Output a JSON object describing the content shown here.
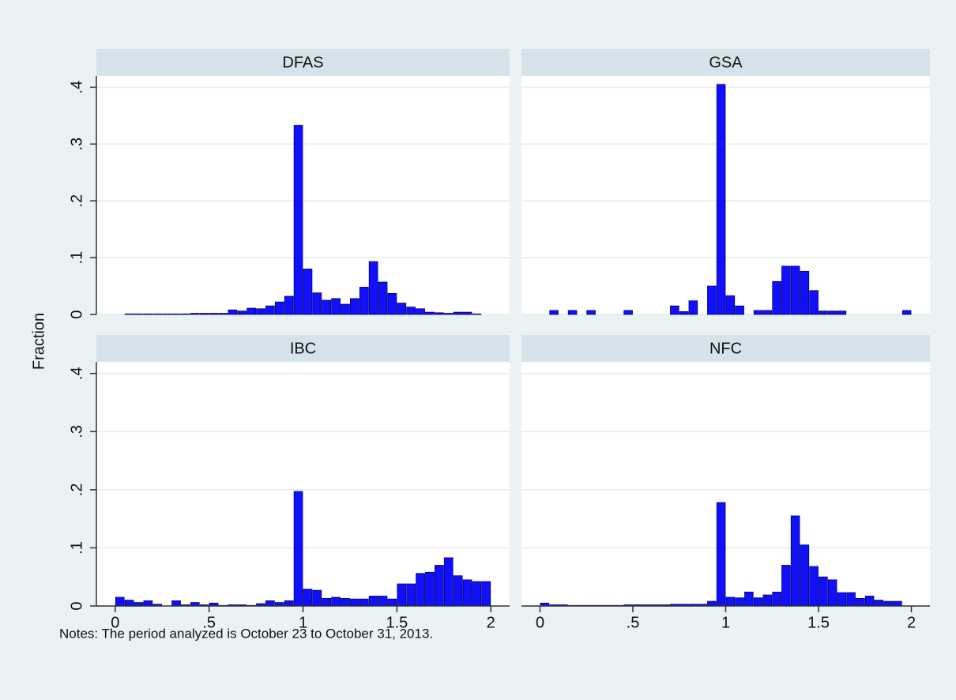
{
  "y_label": "Fraction",
  "note": "Notes: The period analyzed is October 23 to October 31, 2013.",
  "chart_data": [
    {
      "type": "histogram",
      "title": "DFAS",
      "color": "#1010ff",
      "grid": true,
      "xlim": [
        -0.1,
        2.1
      ],
      "ylim": [
        0,
        0.42
      ],
      "yticks": [
        0,
        {
          "value": 0.1,
          "label": ".1"
        },
        {
          "value": 0.2,
          "label": ".2"
        },
        {
          "value": 0.3,
          "label": ".3"
        },
        {
          "value": 0.4,
          "label": ".4"
        }
      ],
      "bins": [
        0,
        0.05,
        0.1,
        0.15,
        0.2,
        0.25,
        0.3,
        0.35,
        0.4,
        0.45,
        0.5,
        0.55,
        0.6,
        0.65,
        0.7,
        0.75,
        0.8,
        0.85,
        0.9,
        0.95,
        1,
        1.05,
        1.1,
        1.15,
        1.2,
        1.25,
        1.3,
        1.35,
        1.4,
        1.45,
        1.5,
        1.55,
        1.6,
        1.65,
        1.7,
        1.75,
        1.8,
        1.85,
        1.9,
        1.95,
        2
      ],
      "values": [
        0,
        0.001,
        0.001,
        0.001,
        0.001,
        0.001,
        0.001,
        0.001,
        0.002,
        0.002,
        0.002,
        0.002,
        0.008,
        0.006,
        0.011,
        0.01,
        0.015,
        0.022,
        0.032,
        0.333,
        0.08,
        0.038,
        0.025,
        0.028,
        0.018,
        0.028,
        0.048,
        0.093,
        0.057,
        0.037,
        0.02,
        0.013,
        0.01,
        0.004,
        0.003,
        0.002,
        0.004,
        0.004,
        0.001,
        0
      ]
    },
    {
      "type": "histogram",
      "title": "GSA",
      "color": "#1010ff",
      "grid": true,
      "xlim": [
        -0.1,
        2.1
      ],
      "ylim": [
        0,
        0.42
      ],
      "yticks": [
        0,
        {
          "value": 0.1,
          "label": ".1"
        },
        {
          "value": 0.2,
          "label": ".2"
        },
        {
          "value": 0.3,
          "label": ".3"
        },
        {
          "value": 0.4,
          "label": ".4"
        }
      ],
      "bins": [
        0,
        0.05,
        0.1,
        0.15,
        0.2,
        0.25,
        0.3,
        0.35,
        0.4,
        0.45,
        0.5,
        0.55,
        0.6,
        0.65,
        0.7,
        0.75,
        0.8,
        0.85,
        0.9,
        0.95,
        1,
        1.05,
        1.1,
        1.15,
        1.2,
        1.25,
        1.3,
        1.35,
        1.4,
        1.45,
        1.5,
        1.55,
        1.6,
        1.65,
        1.7,
        1.75,
        1.8,
        1.85,
        1.9,
        1.95,
        2
      ],
      "values": [
        0,
        0.007,
        0,
        0.007,
        0,
        0.007,
        0,
        0,
        0,
        0.007,
        0,
        0,
        0,
        0,
        0.015,
        0.005,
        0.024,
        0,
        0.05,
        0.405,
        0.033,
        0.015,
        0,
        0.007,
        0.007,
        0.058,
        0.085,
        0.085,
        0.076,
        0.042,
        0.006,
        0.006,
        0.006,
        0,
        0,
        0,
        0,
        0,
        0,
        0.007
      ]
    },
    {
      "type": "histogram",
      "title": "IBC",
      "color": "#1010ff",
      "grid": true,
      "xlim": [
        -0.1,
        2.1
      ],
      "ylim": [
        0,
        0.42
      ],
      "xticks": [
        0,
        {
          "value": 0.5,
          "label": ".5"
        },
        1,
        1.5,
        2
      ],
      "yticks": [
        0,
        {
          "value": 0.1,
          "label": ".1"
        },
        {
          "value": 0.2,
          "label": ".2"
        },
        {
          "value": 0.3,
          "label": ".3"
        },
        {
          "value": 0.4,
          "label": ".4"
        }
      ],
      "bins": [
        0,
        0.05,
        0.1,
        0.15,
        0.2,
        0.25,
        0.3,
        0.35,
        0.4,
        0.45,
        0.5,
        0.55,
        0.6,
        0.65,
        0.7,
        0.75,
        0.8,
        0.85,
        0.9,
        0.95,
        1,
        1.05,
        1.1,
        1.15,
        1.2,
        1.25,
        1.3,
        1.35,
        1.4,
        1.45,
        1.5,
        1.55,
        1.6,
        1.65,
        1.7,
        1.75,
        1.8,
        1.85,
        1.9,
        1.95,
        2
      ],
      "values": [
        0.015,
        0.01,
        0.006,
        0.009,
        0.003,
        0,
        0.009,
        0.002,
        0.006,
        0.002,
        0.005,
        0.001,
        0.002,
        0.002,
        0.001,
        0.004,
        0.009,
        0.006,
        0.009,
        0.197,
        0.029,
        0.027,
        0.013,
        0.015,
        0.013,
        0.012,
        0.012,
        0.017,
        0.017,
        0.012,
        0.038,
        0.038,
        0.056,
        0.058,
        0.07,
        0.083,
        0.052,
        0.045,
        0.042,
        0.042
      ]
    },
    {
      "type": "histogram",
      "title": "NFC",
      "color": "#1010ff",
      "grid": true,
      "xlim": [
        -0.1,
        2.1
      ],
      "ylim": [
        0,
        0.42
      ],
      "xticks": [
        0,
        {
          "value": 0.5,
          "label": ".5"
        },
        1,
        1.5,
        2
      ],
      "yticks": [
        0,
        {
          "value": 0.1,
          "label": ".1"
        },
        {
          "value": 0.2,
          "label": ".2"
        },
        {
          "value": 0.3,
          "label": ".3"
        },
        {
          "value": 0.4,
          "label": ".4"
        }
      ],
      "bins": [
        0,
        0.05,
        0.1,
        0.15,
        0.2,
        0.25,
        0.3,
        0.35,
        0.4,
        0.45,
        0.5,
        0.55,
        0.6,
        0.65,
        0.7,
        0.75,
        0.8,
        0.85,
        0.9,
        0.95,
        1,
        1.05,
        1.1,
        1.15,
        1.2,
        1.25,
        1.3,
        1.35,
        1.4,
        1.45,
        1.5,
        1.55,
        1.6,
        1.65,
        1.7,
        1.75,
        1.8,
        1.85,
        1.9,
        1.95,
        2
      ],
      "values": [
        0.005,
        0.002,
        0.002,
        0.001,
        0.001,
        0.001,
        0.001,
        0.001,
        0.001,
        0.002,
        0.002,
        0.002,
        0.002,
        0.002,
        0.003,
        0.003,
        0.003,
        0.003,
        0.008,
        0.178,
        0.015,
        0.014,
        0.024,
        0.014,
        0.019,
        0.024,
        0.07,
        0.155,
        0.105,
        0.068,
        0.05,
        0.045,
        0.023,
        0.023,
        0.013,
        0.017,
        0.01,
        0.008,
        0.008,
        0
      ]
    }
  ]
}
